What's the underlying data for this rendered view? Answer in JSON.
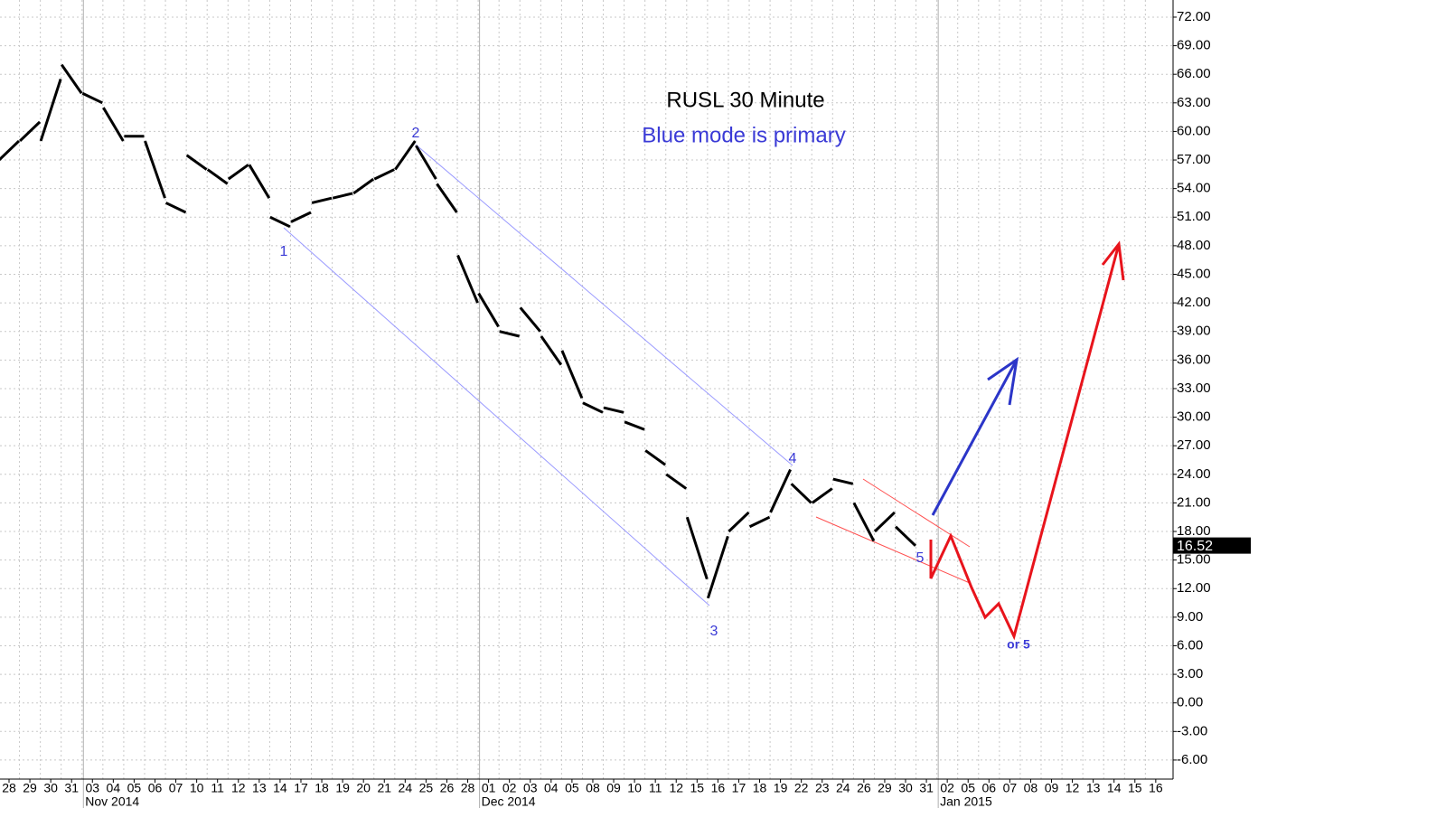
{
  "chart_data": {
    "type": "ohlc-line",
    "title": "RUSL 30 Minute",
    "subtitle": "Blue mode is primary",
    "categories": [
      "28",
      "29",
      "30",
      "31",
      "03",
      "04",
      "05",
      "06",
      "07",
      "10",
      "11",
      "12",
      "13",
      "14",
      "17",
      "18",
      "19",
      "20",
      "21",
      "24",
      "25",
      "26",
      "28",
      "01",
      "02",
      "03",
      "04",
      "05",
      "08",
      "09",
      "10",
      "11",
      "12",
      "15",
      "16",
      "17",
      "18",
      "19",
      "22",
      "23",
      "24",
      "26",
      "29",
      "30",
      "31",
      "02",
      "05",
      "06",
      "07",
      "08",
      "09",
      "12",
      "13",
      "14",
      "15",
      "16"
    ],
    "month_labels": [
      {
        "label": "Nov 2014",
        "at": 4
      },
      {
        "label": "Dec 2014",
        "at": 23
      },
      {
        "label": "Jan 2015",
        "at": 45
      }
    ],
    "series": [
      {
        "name": "open",
        "color": "#000000",
        "values": [
          57,
          59,
          59,
          67,
          64,
          62.5,
          59.5,
          59,
          52.5,
          57.5,
          56,
          55,
          56.5,
          51,
          50.5,
          52.5,
          53,
          53.5,
          55,
          56,
          58.5,
          54.5,
          47,
          43,
          39,
          41.5,
          38.5,
          37,
          31.5,
          31,
          29.5,
          26.5,
          24,
          19.5,
          11,
          18,
          18.5,
          20,
          23,
          21,
          23.5,
          21,
          18,
          18.5,
          null,
          null,
          null,
          null,
          null,
          null,
          null,
          null,
          null,
          null,
          null,
          null
        ]
      },
      {
        "name": "close",
        "color": "#000000",
        "values": [
          59,
          61,
          65.5,
          64,
          63,
          59,
          59.5,
          53,
          51.5,
          56,
          54.5,
          56.5,
          53,
          50,
          51.5,
          53,
          53.5,
          55,
          56,
          59,
          55,
          51.5,
          42,
          39.5,
          38.5,
          39,
          35.5,
          32,
          30.5,
          30.5,
          28.7,
          25,
          22.5,
          13,
          17.5,
          20,
          19.5,
          24.5,
          21,
          22.5,
          23,
          17,
          20,
          16.5,
          null,
          null,
          null,
          null,
          null,
          null,
          null,
          null,
          null,
          null,
          null,
          null
        ]
      }
    ],
    "last_price": 16.52,
    "wave_labels": [
      "1",
      "2",
      "3",
      "4",
      "5",
      "or 5"
    ],
    "ylim": [
      -8,
      73.8
    ],
    "yticks": [
      {
        "value": 72,
        "label": "72.00"
      },
      {
        "value": 69,
        "label": "69.00"
      },
      {
        "value": 66,
        "label": "66.00"
      },
      {
        "value": 63,
        "label": "63.00"
      },
      {
        "value": 60,
        "label": "60.00"
      },
      {
        "value": 57,
        "label": "57.00"
      },
      {
        "value": 54,
        "label": "54.00"
      },
      {
        "value": 51,
        "label": "51.00"
      },
      {
        "value": 48,
        "label": "48.00"
      },
      {
        "value": 45,
        "label": "45.00"
      },
      {
        "value": 42,
        "label": "42.00"
      },
      {
        "value": 39,
        "label": "39.00"
      },
      {
        "value": 36,
        "label": "36.00"
      },
      {
        "value": 33,
        "label": "33.00"
      },
      {
        "value": 30,
        "label": "30.00"
      },
      {
        "value": 27,
        "label": "27.00"
      },
      {
        "value": 24,
        "label": "24.00"
      },
      {
        "value": 21,
        "label": "21.00"
      },
      {
        "value": 18,
        "label": "18.00"
      },
      {
        "value": 15,
        "label": "15.00"
      },
      {
        "value": 12,
        "label": "12.00"
      },
      {
        "value": 9,
        "label": "9.00"
      },
      {
        "value": 6,
        "label": "6.00"
      },
      {
        "value": 3,
        "label": "3.00"
      },
      {
        "value": 0,
        "label": "0.00"
      },
      {
        "value": -3,
        "label": "-3.00"
      },
      {
        "value": -6,
        "label": "-6.00"
      }
    ],
    "grid": true
  }
}
